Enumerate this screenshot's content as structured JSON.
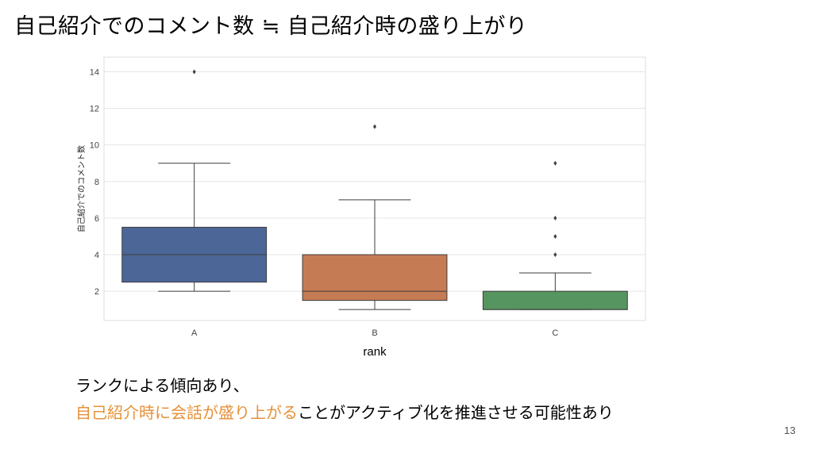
{
  "slide": {
    "title": "自己紹介でのコメント数 ≒ 自己紹介時の盛り上がり",
    "note_line1": "ランクによる傾向あり、",
    "note_line2_highlight": "自己紹介時に会話が盛り上がる",
    "note_line2_rest": "ことがアクティブ化を推進させる可能性あり",
    "page_number": "13"
  },
  "colors": {
    "highlight": "#e69138",
    "plot_background": "#ffffff",
    "grid": "#e5e5e5",
    "box_A": "#4c6698",
    "box_B": "#c57c54",
    "box_C": "#56955f"
  },
  "chart_data": {
    "type": "box",
    "xlabel": "rank",
    "ylabel": "自己紹介でのコメント数",
    "ylim": [
      0.4,
      14.8
    ],
    "yticks": [
      2,
      4,
      6,
      8,
      10,
      12,
      14
    ],
    "grid": true,
    "categories": [
      "A",
      "B",
      "C"
    ],
    "boxes": [
      {
        "category": "A",
        "whisker_low": 2,
        "q1": 2.5,
        "median": 4,
        "q3": 5.5,
        "whisker_high": 9,
        "outliers": [
          14
        ]
      },
      {
        "category": "B",
        "whisker_low": 1,
        "q1": 1.5,
        "median": 2,
        "q3": 4,
        "whisker_high": 7,
        "outliers": [
          11
        ]
      },
      {
        "category": "C",
        "whisker_low": 1,
        "q1": 1,
        "median": 1,
        "q3": 2,
        "whisker_high": 3,
        "outliers": [
          4,
          5,
          6,
          9
        ]
      }
    ]
  }
}
